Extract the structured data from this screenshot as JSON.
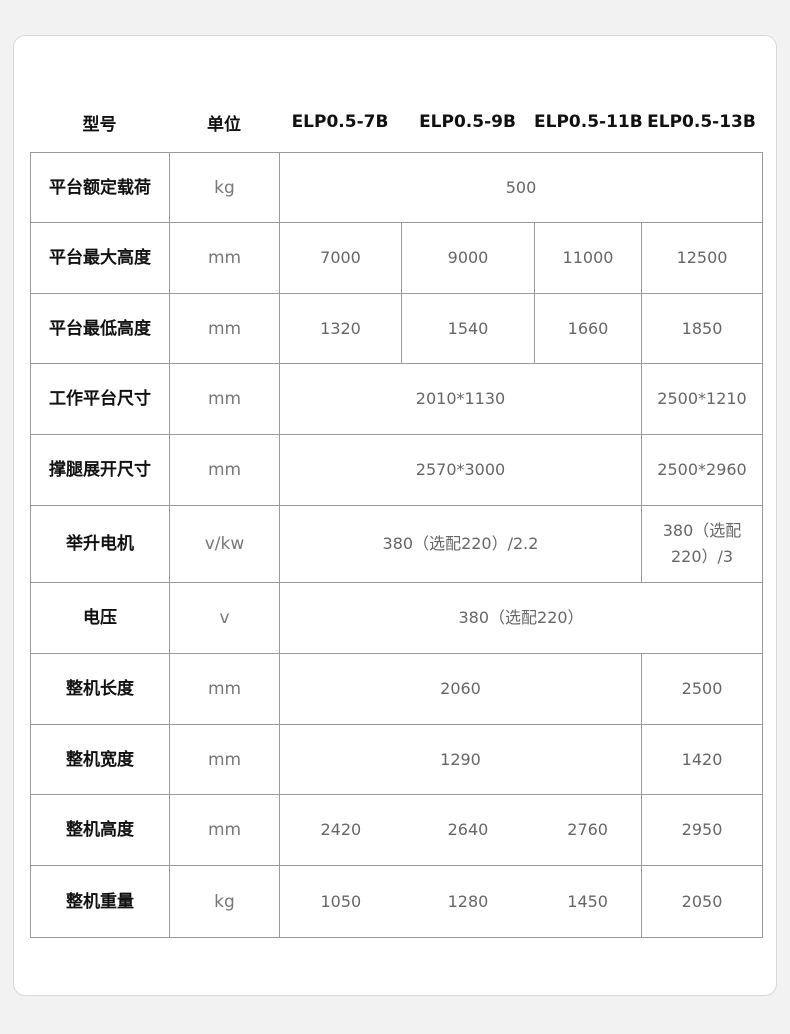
{
  "header": {
    "model": "型号",
    "unit": "单位",
    "models": [
      "ELP0.5-7B",
      "ELP0.5-9B",
      "ELP0.5-11B",
      "ELP0.5-13B"
    ]
  },
  "rows": [
    {
      "label": "平台额定载荷",
      "unit": "kg",
      "values": [
        "500"
      ]
    },
    {
      "label": "平台最大高度",
      "unit": "mm",
      "values": [
        "7000",
        "9000",
        "11000",
        "12500"
      ]
    },
    {
      "label": "平台最低高度",
      "unit": "mm",
      "values": [
        "1320",
        "1540",
        "1660",
        "1850"
      ]
    },
    {
      "label": "工作平台尺寸",
      "unit": "mm",
      "values": [
        "2010*1130",
        "2500*1210"
      ]
    },
    {
      "label": "撑腿展开尺寸",
      "unit": "mm",
      "values": [
        "2570*3000",
        "2500*2960"
      ]
    },
    {
      "label": "举升电机",
      "unit": "v/kw",
      "values": [
        "380（选配220）/2.2",
        "380（选配220）/3"
      ]
    },
    {
      "label": "电压",
      "unit": "v",
      "values": [
        "380（选配220）"
      ]
    },
    {
      "label": "整机长度",
      "unit": "mm",
      "values": [
        "2060",
        "2500"
      ]
    },
    {
      "label": "整机宽度",
      "unit": "mm",
      "values": [
        "1290",
        "1420"
      ]
    },
    {
      "label": "整机高度",
      "unit": "mm",
      "values": [
        "2420",
        "2640",
        "2760",
        "2950"
      ]
    },
    {
      "label": "整机重量",
      "unit": "kg",
      "values": [
        "1050",
        "1280",
        "1450",
        "2050"
      ]
    }
  ]
}
